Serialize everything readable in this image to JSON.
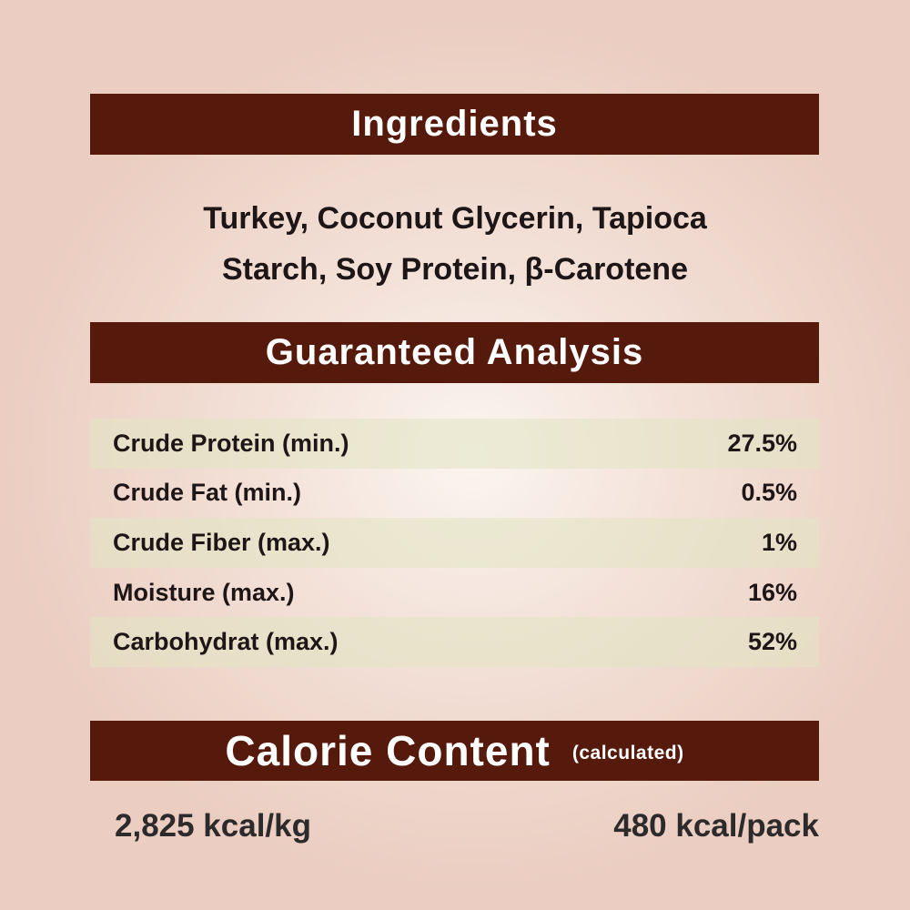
{
  "ingredients": {
    "title": "Ingredients",
    "lines": [
      "Turkey, Coconut Glycerin, Tapioca",
      "Starch, Soy Protein, β-Carotene"
    ]
  },
  "analysis": {
    "title": "Guaranteed Analysis",
    "rows": [
      {
        "label": "Crude Protein (min.)",
        "value": "27.5%"
      },
      {
        "label": "Crude Fat (min.)",
        "value": "0.5%"
      },
      {
        "label": "Crude Fiber (max.)",
        "value": "1%"
      },
      {
        "label": "Moisture (max.)",
        "value": "16%"
      },
      {
        "label": "Carbohydrat (max.)",
        "value": "52%"
      }
    ]
  },
  "calorie": {
    "title": "Calorie Content",
    "note": "(calculated)",
    "per_kg": "2,825 kcal/kg",
    "per_pack": "480 kcal/pack"
  },
  "colors": {
    "banner": "#561a0d",
    "background": "#ebcdc1",
    "stripe": "#e2e4c4"
  }
}
